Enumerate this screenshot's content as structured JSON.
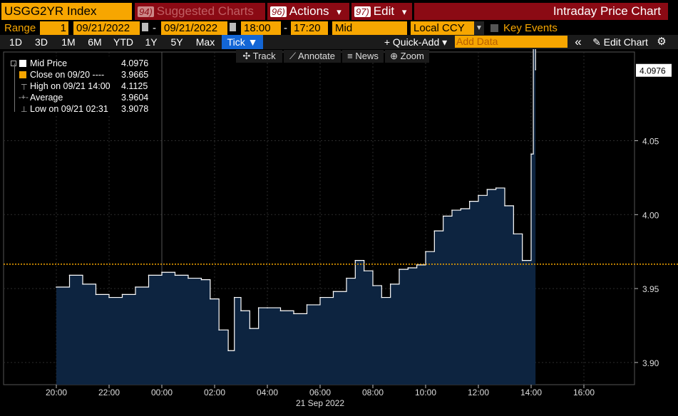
{
  "header": {
    "ticker": "USGG2YR Index",
    "suggested": {
      "num": "94)",
      "label": "Suggested Charts"
    },
    "actions": {
      "num": "96)",
      "label": "Actions",
      "arrow": "▾"
    },
    "edit": {
      "num": "97)",
      "label": "Edit",
      "arrow": "▾"
    },
    "title": "Intraday Price Chart"
  },
  "controls": {
    "range_label": "Range",
    "range_value": "1",
    "start_date": "09/21/2022",
    "end_date": "09/21/2022",
    "dash": "-",
    "start_time": "18:00",
    "end_time": "17:20",
    "price_type": "Mid",
    "currency": "Local CCY",
    "key_events": "Key Events"
  },
  "toolbar": {
    "periods": [
      "1D",
      "3D",
      "1M",
      "6M",
      "YTD",
      "1Y",
      "5Y",
      "Max"
    ],
    "tick": "Tick ▼",
    "quick_add": "+ Quick-Add ▾",
    "add_data_placeholder": "Add Data",
    "collapse": "«",
    "edit_chart": "✎ Edit Chart",
    "settings_icon": "⚙"
  },
  "chart_tools": [
    "✣ Track",
    "⟋ Annotate",
    "≡ News",
    "⊕ Zoom"
  ],
  "legend": [
    {
      "key": "Mid Price",
      "value": "4.0976",
      "symbol": "white-box"
    },
    {
      "key": "Close on 09/20 ---- ",
      "value": "3.9665",
      "symbol": "orange-box"
    },
    {
      "key": "High on 09/21 14:00",
      "value": "4.1125",
      "symbol": "high"
    },
    {
      "key": "Average",
      "value": "3.9604",
      "symbol": "avg"
    },
    {
      "key": "Low on 09/21 02:31",
      "value": "3.9078",
      "symbol": "low"
    }
  ],
  "colors": {
    "accent": "#f7a600",
    "header_red": "#8b0a14",
    "area_fill": "#0d2440",
    "line": "#ffffff",
    "close_line": "#f7a600"
  },
  "chart_data": {
    "type": "area",
    "title": "",
    "date_label": "21 Sep 2022",
    "x_ticks": [
      "20:00",
      "22:00",
      "00:00",
      "02:00",
      "04:00",
      "06:00",
      "08:00",
      "10:00",
      "12:00",
      "14:00",
      "16:00"
    ],
    "y_ticks": [
      3.9,
      3.95,
      4.0,
      4.05
    ],
    "y_tick_labels": [
      "3.90",
      "3.95",
      "4.00",
      "4.05"
    ],
    "ylim": [
      3.885,
      4.11
    ],
    "last_price_label": "4.0976",
    "last_price": 4.0976,
    "prev_close": 3.9665,
    "series": [
      {
        "name": "Mid Price",
        "x": [
          "20:00",
          "20:30",
          "21:00",
          "21:30",
          "22:00",
          "22:30",
          "23:00",
          "23:30",
          "00:00",
          "00:30",
          "01:00",
          "01:30",
          "01:50",
          "02:10",
          "02:31",
          "02:45",
          "03:00",
          "03:20",
          "03:40",
          "04:00",
          "04:30",
          "05:00",
          "05:30",
          "06:00",
          "06:30",
          "07:00",
          "07:20",
          "07:40",
          "08:00",
          "08:20",
          "08:40",
          "09:00",
          "09:20",
          "09:40",
          "10:00",
          "10:20",
          "10:40",
          "11:00",
          "11:20",
          "11:40",
          "12:00",
          "12:20",
          "12:40",
          "13:00",
          "13:20",
          "13:40",
          "14:00",
          "14:05",
          "14:10"
        ],
        "y": [
          3.951,
          3.959,
          3.953,
          3.946,
          3.944,
          3.946,
          3.951,
          3.959,
          3.961,
          3.959,
          3.957,
          3.956,
          3.943,
          3.922,
          3.908,
          3.944,
          3.935,
          3.923,
          3.937,
          3.937,
          3.935,
          3.933,
          3.939,
          3.944,
          3.948,
          3.957,
          3.969,
          3.962,
          3.952,
          3.944,
          3.953,
          3.963,
          3.964,
          3.966,
          3.975,
          3.989,
          3.999,
          4.003,
          4.004,
          4.009,
          4.013,
          4.017,
          4.018,
          4.006,
          3.987,
          3.969,
          4.041,
          4.113,
          4.098
        ]
      }
    ]
  }
}
